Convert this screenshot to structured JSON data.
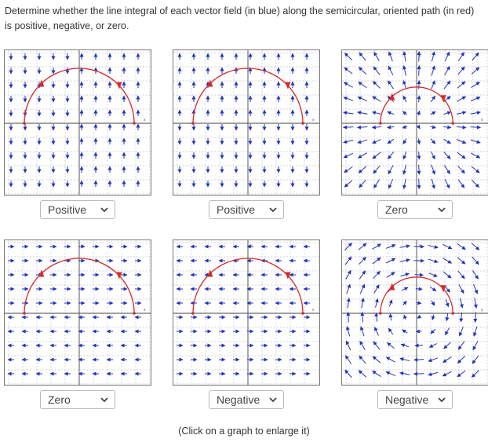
{
  "prompt": "Determine whether the line integral of each vector field (in blue) along the semicircular, oriented path (in red) is positive, negative, or zero.",
  "footer": "(Click on a graph to enlarge it)",
  "axis_labels": {
    "x": "x",
    "y": "y"
  },
  "colors": {
    "field": "#2233bb",
    "path": "#d42a2a",
    "grid": "#c8c8c8",
    "axis": "#444444",
    "frame": "#7a7a7a"
  },
  "icons": {
    "dropdown": "chevron-down-icon"
  },
  "problems": [
    {
      "field": "vertical-split-left-down-right-up",
      "answer": "Positive"
    },
    {
      "field": "vertical-up-top-down-bottom",
      "answer": "Positive"
    },
    {
      "field": "radial-outward",
      "answer": "Zero"
    },
    {
      "field": "horizontal-right-top-left-bottom-of-axis",
      "answer": "Zero"
    },
    {
      "field": "horizontal-left-top-right-bottom",
      "answer": "Negative"
    },
    {
      "field": "rotational-clockwise",
      "answer": "Negative"
    }
  ]
}
